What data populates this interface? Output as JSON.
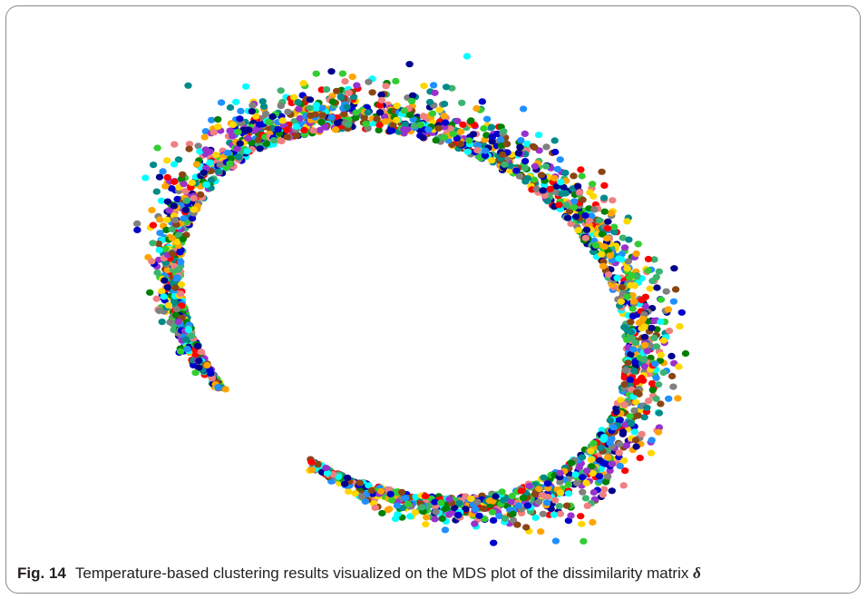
{
  "figure": {
    "label": "Fig. 14",
    "caption": "Temperature-based clustering results visualized on the MDS plot of the dissimilarity matrix",
    "symbol": "δ"
  },
  "chart_data": {
    "type": "scatter",
    "title": "",
    "xlabel": "",
    "ylabel": "",
    "axes_visible": false,
    "grid": false,
    "legend": "none",
    "shape": "open ring (ellipse-like arc), starts lower-left, sweeps over the top and right, ends at bottom center",
    "approx_point_count": 2600,
    "cluster_colors": [
      "#0000CD",
      "#00008B",
      "#FF0000",
      "#008000",
      "#00FFFF",
      "#32CD32",
      "#FFD700",
      "#FFA500",
      "#9932CC",
      "#808080",
      "#F08080",
      "#008B8B",
      "#8B4513",
      "#3CB371",
      "#1E90FF"
    ]
  }
}
